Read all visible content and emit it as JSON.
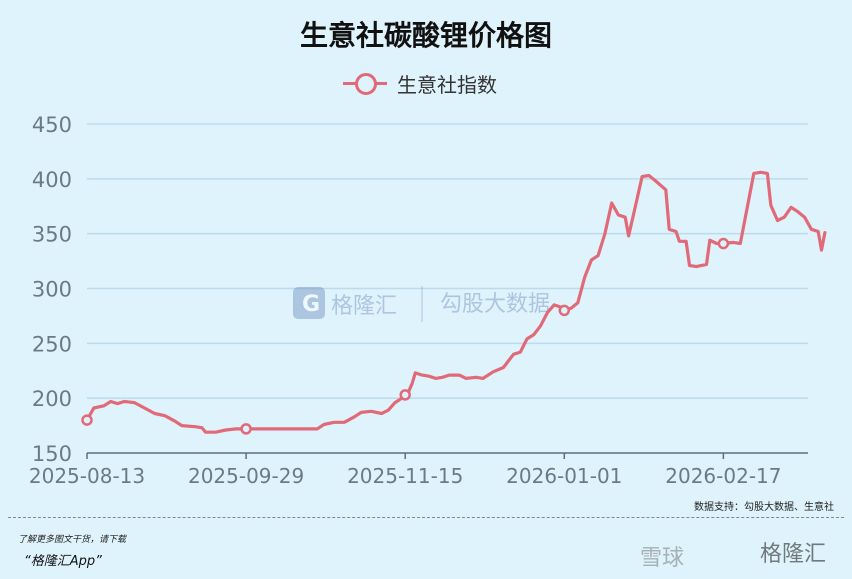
{
  "title": "生意社碳酸锂价格图",
  "legend": {
    "label": "生意社指数",
    "color": "#e06a78"
  },
  "source_note": "数据支持：勾股大数据、生意社",
  "promo": {
    "line1": "了解更多图文干货，请下载",
    "line2": "“格隆汇App”"
  },
  "watermark": {
    "brand1": "格隆汇",
    "brand2": "勾股大数据",
    "brand3": "雪球",
    "brand4": "格隆汇"
  },
  "chart_data": {
    "type": "line",
    "x_start": "2025-08-13",
    "x_end": "2026-03-14",
    "x_ticks": [
      "2025-08-13",
      "2025-09-29",
      "2025-11-15",
      "2026-01-01",
      "2026-02-17"
    ],
    "y_ticks": [
      150,
      200,
      250,
      300,
      350,
      400,
      450
    ],
    "ylim": [
      150,
      450
    ],
    "grid": true,
    "series": [
      {
        "name": "生意社指数",
        "color": "#e06a78",
        "points": [
          [
            "2025-08-13",
            180
          ],
          [
            "2025-08-15",
            191
          ],
          [
            "2025-08-18",
            193
          ],
          [
            "2025-08-20",
            197
          ],
          [
            "2025-08-22",
            195
          ],
          [
            "2025-08-24",
            197
          ],
          [
            "2025-08-27",
            196
          ],
          [
            "2025-08-30",
            191
          ],
          [
            "2025-09-02",
            186
          ],
          [
            "2025-09-05",
            184
          ],
          [
            "2025-09-08",
            179
          ],
          [
            "2025-09-10",
            175
          ],
          [
            "2025-09-14",
            174
          ],
          [
            "2025-09-16",
            173
          ],
          [
            "2025-09-17",
            169
          ],
          [
            "2025-09-20",
            169
          ],
          [
            "2025-09-23",
            171
          ],
          [
            "2025-09-26",
            172
          ],
          [
            "2025-09-29",
            172
          ],
          [
            "2025-10-07",
            172
          ],
          [
            "2025-10-14",
            172
          ],
          [
            "2025-10-20",
            172
          ],
          [
            "2025-10-22",
            176
          ],
          [
            "2025-10-25",
            178
          ],
          [
            "2025-10-28",
            178
          ],
          [
            "2025-10-31",
            183
          ],
          [
            "2025-11-02",
            187
          ],
          [
            "2025-11-05",
            188
          ],
          [
            "2025-11-08",
            186
          ],
          [
            "2025-11-10",
            189
          ],
          [
            "2025-11-12",
            196
          ],
          [
            "2025-11-14",
            200
          ],
          [
            "2025-11-15",
            203
          ],
          [
            "2025-11-16",
            206
          ],
          [
            "2025-11-17",
            213
          ],
          [
            "2025-11-18",
            223
          ],
          [
            "2025-11-20",
            221
          ],
          [
            "2025-11-22",
            220
          ],
          [
            "2025-11-24",
            218
          ],
          [
            "2025-11-26",
            219
          ],
          [
            "2025-11-28",
            221
          ],
          [
            "2025-12-01",
            221
          ],
          [
            "2025-12-03",
            218
          ],
          [
            "2025-12-06",
            219
          ],
          [
            "2025-12-08",
            218
          ],
          [
            "2025-12-11",
            224
          ],
          [
            "2025-12-14",
            228
          ],
          [
            "2025-12-17",
            240
          ],
          [
            "2025-12-19",
            242
          ],
          [
            "2025-12-21",
            254
          ],
          [
            "2025-12-23",
            258
          ],
          [
            "2025-12-25",
            266
          ],
          [
            "2025-12-27",
            278
          ],
          [
            "2025-12-29",
            285
          ],
          [
            "2025-12-31",
            283
          ],
          [
            "2026-01-01",
            280
          ],
          [
            "2026-01-03",
            282
          ],
          [
            "2026-01-05",
            287
          ],
          [
            "2026-01-07",
            310
          ],
          [
            "2026-01-09",
            326
          ],
          [
            "2026-01-11",
            330
          ],
          [
            "2026-01-13",
            350
          ],
          [
            "2026-01-15",
            378
          ],
          [
            "2026-01-17",
            367
          ],
          [
            "2026-01-19",
            365
          ],
          [
            "2026-01-20",
            348
          ],
          [
            "2026-01-22",
            375
          ],
          [
            "2026-01-24",
            402
          ],
          [
            "2026-01-26",
            403
          ],
          [
            "2026-01-28",
            398
          ],
          [
            "2026-01-31",
            390
          ],
          [
            "2026-02-01",
            354
          ],
          [
            "2026-02-03",
            352
          ],
          [
            "2026-02-04",
            343
          ],
          [
            "2026-02-06",
            343
          ],
          [
            "2026-02-07",
            321
          ],
          [
            "2026-02-09",
            320
          ],
          [
            "2026-02-12",
            322
          ],
          [
            "2026-02-13",
            344
          ],
          [
            "2026-02-15",
            341
          ],
          [
            "2026-02-17",
            341
          ],
          [
            "2026-02-20",
            342
          ],
          [
            "2026-02-22",
            341
          ],
          [
            "2026-02-26",
            405
          ],
          [
            "2026-02-28",
            406
          ],
          [
            "2026-03-02",
            405
          ],
          [
            "2026-03-03",
            376
          ],
          [
            "2026-03-05",
            362
          ],
          [
            "2026-03-07",
            365
          ],
          [
            "2026-03-09",
            374
          ],
          [
            "2026-03-11",
            370
          ],
          [
            "2026-03-13",
            365
          ],
          [
            "2026-03-15",
            354
          ],
          [
            "2026-03-17",
            352
          ],
          [
            "2026-03-18",
            335
          ],
          [
            "2026-03-19",
            351
          ]
        ],
        "markers": [
          "2025-08-13",
          "2025-09-29",
          "2025-11-15",
          "2026-01-01",
          "2026-02-17"
        ]
      }
    ]
  }
}
